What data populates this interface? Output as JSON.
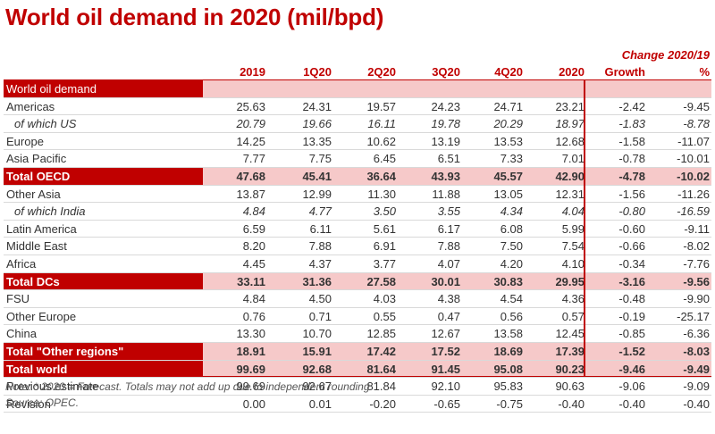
{
  "title": "World oil demand in 2020 (mil/bpd)",
  "subheading": "Change 2020/19",
  "columns": [
    "2019",
    "1Q20",
    "2Q20",
    "3Q20",
    "4Q20",
    "2020",
    "Growth",
    "%"
  ],
  "rows": [
    {
      "label": "World oil demand",
      "kind": "section",
      "values": []
    },
    {
      "label": "Americas",
      "kind": "normal",
      "values": [
        "25.63",
        "24.31",
        "19.57",
        "24.23",
        "24.71",
        "23.21",
        "-2.42",
        "-9.45"
      ]
    },
    {
      "label": "of which US",
      "kind": "italic",
      "values": [
        "20.79",
        "19.66",
        "16.11",
        "19.78",
        "20.29",
        "18.97",
        "-1.83",
        "-8.78"
      ]
    },
    {
      "label": "Europe",
      "kind": "normal",
      "values": [
        "14.25",
        "13.35",
        "10.62",
        "13.19",
        "13.53",
        "12.68",
        "-1.58",
        "-11.07"
      ]
    },
    {
      "label": "Asia Pacific",
      "kind": "normal",
      "values": [
        "7.77",
        "7.75",
        "6.45",
        "6.51",
        "7.33",
        "7.01",
        "-0.78",
        "-10.01"
      ]
    },
    {
      "label": "Total OECD",
      "kind": "total",
      "values": [
        "47.68",
        "45.41",
        "36.64",
        "43.93",
        "45.57",
        "42.90",
        "-4.78",
        "-10.02"
      ]
    },
    {
      "label": "Other Asia",
      "kind": "normal",
      "values": [
        "13.87",
        "12.99",
        "11.30",
        "11.88",
        "13.05",
        "12.31",
        "-1.56",
        "-11.26"
      ]
    },
    {
      "label": "of which India",
      "kind": "italic",
      "values": [
        "4.84",
        "4.77",
        "3.50",
        "3.55",
        "4.34",
        "4.04",
        "-0.80",
        "-16.59"
      ]
    },
    {
      "label": "Latin America",
      "kind": "normal",
      "values": [
        "6.59",
        "6.11",
        "5.61",
        "6.17",
        "6.08",
        "5.99",
        "-0.60",
        "-9.11"
      ]
    },
    {
      "label": "Middle East",
      "kind": "normal",
      "values": [
        "8.20",
        "7.88",
        "6.91",
        "7.88",
        "7.50",
        "7.54",
        "-0.66",
        "-8.02"
      ]
    },
    {
      "label": "Africa",
      "kind": "normal",
      "values": [
        "4.45",
        "4.37",
        "3.77",
        "4.07",
        "4.20",
        "4.10",
        "-0.34",
        "-7.76"
      ]
    },
    {
      "label": "Total DCs",
      "kind": "total",
      "values": [
        "33.11",
        "31.36",
        "27.58",
        "30.01",
        "30.83",
        "29.95",
        "-3.16",
        "-9.56"
      ]
    },
    {
      "label": "FSU",
      "kind": "normal",
      "values": [
        "4.84",
        "4.50",
        "4.03",
        "4.38",
        "4.54",
        "4.36",
        "-0.48",
        "-9.90"
      ]
    },
    {
      "label": "Other Europe",
      "kind": "normal",
      "values": [
        "0.76",
        "0.71",
        "0.55",
        "0.47",
        "0.56",
        "0.57",
        "-0.19",
        "-25.17"
      ]
    },
    {
      "label": "China",
      "kind": "normal",
      "values": [
        "13.30",
        "10.70",
        "12.85",
        "12.67",
        "13.58",
        "12.45",
        "-0.85",
        "-6.36"
      ]
    },
    {
      "label": "Total \"Other regions\"",
      "kind": "total",
      "values": [
        "18.91",
        "15.91",
        "17.42",
        "17.52",
        "18.69",
        "17.39",
        "-1.52",
        "-8.03"
      ]
    },
    {
      "label": "Total world",
      "kind": "total",
      "values": [
        "99.69",
        "92.68",
        "81.64",
        "91.45",
        "95.08",
        "90.23",
        "-9.46",
        "-9.49"
      ]
    },
    {
      "label": "Previous estimate",
      "kind": "normal",
      "values": [
        "99.69",
        "92.67",
        "81.84",
        "92.10",
        "95.83",
        "90.63",
        "-9.06",
        "-9.09"
      ]
    },
    {
      "label": "Revision",
      "kind": "normal",
      "values": [
        "0.00",
        "0.01",
        "-0.20",
        "-0.65",
        "-0.75",
        "-0.40",
        "-0.40",
        "-0.40"
      ]
    }
  ],
  "notes": {
    "note": "Note: * 2020 = Forecast. Totals may not add up due to independent rounding.",
    "source": "Source: OPEC."
  },
  "colors": {
    "accent": "#c00000",
    "highlight": "#f6c9c9"
  }
}
